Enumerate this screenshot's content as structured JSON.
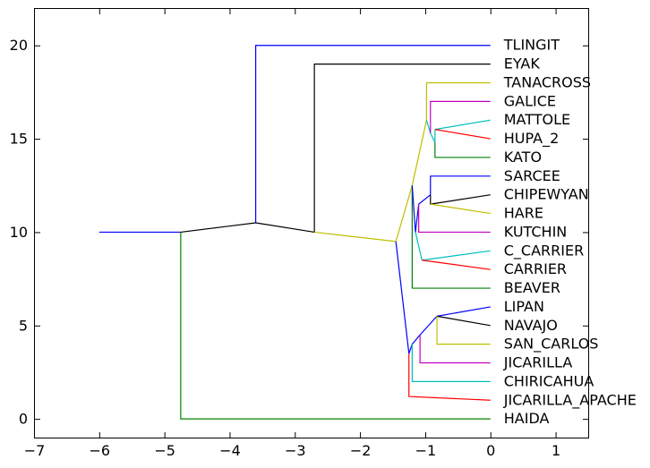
{
  "chart_data": {
    "type": "line",
    "subtype": "dendrogram",
    "title": "",
    "xlabel": "",
    "ylabel": "",
    "xlim": [
      -7,
      1.5
    ],
    "ylim": [
      -1,
      22
    ],
    "xticks": [
      -7,
      -6,
      -5,
      -4,
      -3,
      -2,
      -1,
      0,
      1
    ],
    "yticks": [
      0,
      5,
      10,
      15,
      20
    ],
    "grid": false,
    "leaves": [
      {
        "label": "TLINGIT",
        "y": 20
      },
      {
        "label": "EYAK",
        "y": 19
      },
      {
        "label": "TANACROSS",
        "y": 18
      },
      {
        "label": "GALICE",
        "y": 17
      },
      {
        "label": "MATTOLE",
        "y": 16
      },
      {
        "label": "HUPA_2",
        "y": 15
      },
      {
        "label": "KATO",
        "y": 14
      },
      {
        "label": "SARCEE",
        "y": 13
      },
      {
        "label": "CHIPEWYAN",
        "y": 12
      },
      {
        "label": "HARE",
        "y": 11
      },
      {
        "label": "KUTCHIN",
        "y": 10
      },
      {
        "label": "C_CARRIER",
        "y": 9
      },
      {
        "label": "CARRIER",
        "y": 8
      },
      {
        "label": "BEAVER",
        "y": 7
      },
      {
        "label": "LIPAN",
        "y": 6
      },
      {
        "label": "NAVAJO",
        "y": 5
      },
      {
        "label": "SAN_CARLOS",
        "y": 4
      },
      {
        "label": "JICARILLA",
        "y": 3
      },
      {
        "label": "CHIRICAHUA",
        "y": 2
      },
      {
        "label": "JICARILLA_APACHE",
        "y": 1
      },
      {
        "label": "HAIDA",
        "y": 0
      }
    ],
    "colors": {
      "blue": "#0000ff",
      "green": "#008000",
      "red": "#ff0000",
      "cyan": "#00bfbf",
      "magenta": "#bf00bf",
      "yellow": "#bfbf00",
      "black": "#000000"
    },
    "series": [
      {
        "color": "#0000ff",
        "x": [
          -6.0,
          -4.75
        ],
        "y": [
          10,
          10
        ]
      },
      {
        "color": "#008000",
        "x": [
          -4.75,
          -4.75,
          0
        ],
        "y": [
          10,
          0,
          0
        ]
      },
      {
        "color": "#000000",
        "x": [
          -4.75,
          -3.6
        ],
        "y": [
          10,
          10.5
        ]
      },
      {
        "color": "#0000ff",
        "x": [
          -3.6,
          -3.6,
          0
        ],
        "y": [
          10.5,
          20,
          20
        ]
      },
      {
        "color": "#000000",
        "x": [
          -3.6,
          -2.7
        ],
        "y": [
          10.5,
          10
        ]
      },
      {
        "color": "#000000",
        "x": [
          -2.7,
          -2.7,
          0
        ],
        "y": [
          10,
          19,
          19
        ]
      },
      {
        "color": "#bfbf00",
        "x": [
          -2.7,
          -1.45
        ],
        "y": [
          10,
          9.5
        ]
      },
      {
        "color": "#0000ff",
        "x": [
          -1.45,
          -1.25
        ],
        "y": [
          9.5,
          3.5
        ]
      },
      {
        "color": "#bfbf00",
        "x": [
          -1.45,
          -1.2
        ],
        "y": [
          9.5,
          12.5
        ]
      },
      {
        "color": "#bfbf00",
        "x": [
          -1.2,
          -0.98
        ],
        "y": [
          12.5,
          16
        ]
      },
      {
        "color": "#bfbf00",
        "x": [
          -0.98,
          -0.98,
          0
        ],
        "y": [
          16,
          18,
          18
        ]
      },
      {
        "color": "#00bfbf",
        "x": [
          -0.98,
          -0.92
        ],
        "y": [
          16,
          15.3
        ]
      },
      {
        "color": "#bf00bf",
        "x": [
          -0.92,
          -0.92,
          0
        ],
        "y": [
          15.3,
          17,
          17
        ]
      },
      {
        "color": "#00bfbf",
        "x": [
          -0.92,
          -0.85
        ],
        "y": [
          15.3,
          14.8
        ]
      },
      {
        "color": "#008000",
        "x": [
          -0.85,
          -0.85,
          0
        ],
        "y": [
          14.8,
          14,
          14
        ]
      },
      {
        "color": "#00bfbf",
        "x": [
          -0.85,
          -0.85
        ],
        "y": [
          14.8,
          15.5
        ]
      },
      {
        "color": "#00bfbf",
        "x": [
          -0.85,
          0
        ],
        "y": [
          15.5,
          16
        ]
      },
      {
        "color": "#ff0000",
        "x": [
          -0.85,
          0
        ],
        "y": [
          15.5,
          15
        ]
      },
      {
        "color": "#008000",
        "x": [
          -1.2,
          -1.2,
          0
        ],
        "y": [
          12.5,
          7,
          7
        ]
      },
      {
        "color": "#0000ff",
        "x": [
          -1.2,
          -1.15
        ],
        "y": [
          12.5,
          10
        ]
      },
      {
        "color": "#0000ff",
        "x": [
          -1.15,
          -1.1
        ],
        "y": [
          10,
          11.5
        ]
      },
      {
        "color": "#0000ff",
        "x": [
          -1.1,
          -0.92
        ],
        "y": [
          11.5,
          12
        ]
      },
      {
        "color": "#0000ff",
        "x": [
          -0.92,
          -0.92,
          0
        ],
        "y": [
          12,
          13,
          13
        ]
      },
      {
        "color": "#000000",
        "x": [
          -0.92,
          -0.92,
          0
        ],
        "y": [
          12,
          11.5,
          12
        ]
      },
      {
        "color": "#bfbf00",
        "x": [
          -0.92,
          0
        ],
        "y": [
          11.5,
          11
        ]
      },
      {
        "color": "#bf00bf",
        "x": [
          -1.1,
          -1.1,
          0
        ],
        "y": [
          11.5,
          10,
          10
        ]
      },
      {
        "color": "#00bfbf",
        "x": [
          -1.15,
          -1.05
        ],
        "y": [
          10,
          8.5
        ]
      },
      {
        "color": "#00bfbf",
        "x": [
          -1.05,
          0
        ],
        "y": [
          8.5,
          9
        ]
      },
      {
        "color": "#ff0000",
        "x": [
          -1.05,
          0
        ],
        "y": [
          8.5,
          8
        ]
      },
      {
        "color": "#ff0000",
        "x": [
          -1.25,
          -1.25,
          0
        ],
        "y": [
          3.5,
          1.2,
          1
        ]
      },
      {
        "color": "#0000ff",
        "x": [
          -1.25,
          -1.2
        ],
        "y": [
          3.5,
          4
        ]
      },
      {
        "color": "#00bfbf",
        "x": [
          -1.2,
          -1.2,
          0
        ],
        "y": [
          4,
          2,
          2
        ]
      },
      {
        "color": "#0000ff",
        "x": [
          -1.2,
          -1.08
        ],
        "y": [
          4,
          4.5
        ]
      },
      {
        "color": "#bf00bf",
        "x": [
          -1.08,
          -1.08,
          0
        ],
        "y": [
          4.5,
          3,
          3
        ]
      },
      {
        "color": "#0000ff",
        "x": [
          -1.08,
          -0.82
        ],
        "y": [
          4.5,
          5.5
        ]
      },
      {
        "color": "#0000ff",
        "x": [
          -0.82,
          0
        ],
        "y": [
          5.5,
          6
        ]
      },
      {
        "color": "#000000",
        "x": [
          -0.82,
          0
        ],
        "y": [
          5.5,
          5
        ]
      },
      {
        "color": "#bfbf00",
        "x": [
          -0.82,
          -0.82,
          0
        ],
        "y": [
          5.5,
          4,
          4
        ]
      }
    ]
  }
}
